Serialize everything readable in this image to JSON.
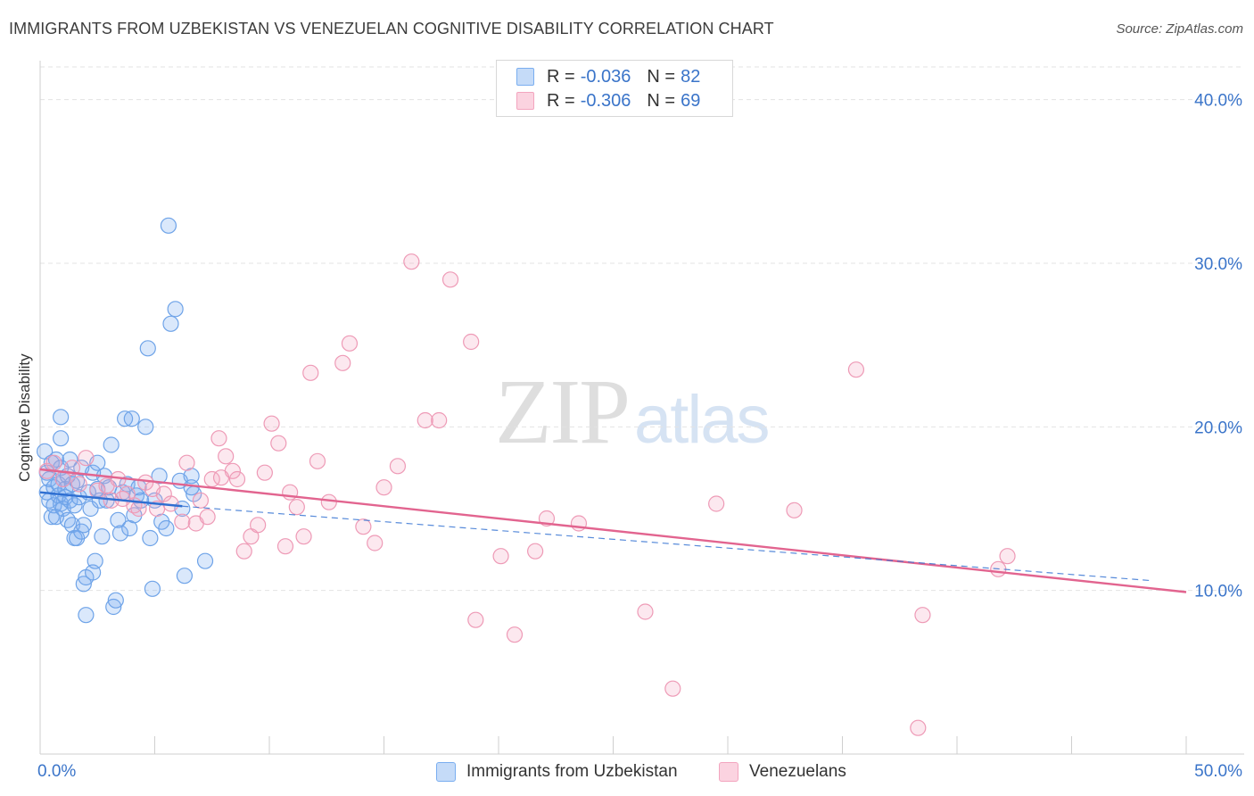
{
  "title": "IMMIGRANTS FROM UZBEKISTAN VS VENEZUELAN COGNITIVE DISABILITY CORRELATION CHART",
  "source": "Source: ZipAtlas.com",
  "watermark": {
    "zip": "ZIP",
    "atlas": "atlas"
  },
  "legend": {
    "r_label": "R =",
    "n_label": "N =",
    "rows": [
      {
        "r": "-0.036",
        "n": "82",
        "color": "#7aaef0"
      },
      {
        "r": "-0.306",
        "n": "69",
        "color": "#f3a5bf"
      }
    ]
  },
  "bottom_legend": [
    "Immigrants from Uzbekistan",
    "Venezuelans"
  ],
  "chart_data": {
    "type": "scatter",
    "title": "IMMIGRANTS FROM UZBEKISTAN VS VENEZUELAN COGNITIVE DISABILITY CORRELATION CHART",
    "xlabel": "",
    "ylabel": "Cognitive Disability",
    "xlim": [
      0,
      50
    ],
    "ylim": [
      0,
      42
    ],
    "x_ticks_labeled": [
      "0.0%",
      "50.0%"
    ],
    "y_ticks": [
      10,
      20,
      30,
      40
    ],
    "y_tick_labels": [
      "10.0%",
      "20.0%",
      "30.0%",
      "40.0%"
    ],
    "grid": true,
    "legend_position": "top-center",
    "colors": {
      "uzbekistan": "#7aaef0",
      "venezuelans": "#f3a5bf",
      "uz_line": "#2f6fd1",
      "ve_line": "#e2648f",
      "axis_text": "#3a74c9"
    },
    "series": [
      {
        "name": "Immigrants from Uzbekistan",
        "color": "#7aaef0",
        "points": [
          [
            0.2,
            18.5
          ],
          [
            0.3,
            17.2
          ],
          [
            0.3,
            16.0
          ],
          [
            0.4,
            15.5
          ],
          [
            0.4,
            16.8
          ],
          [
            0.5,
            14.5
          ],
          [
            0.5,
            17.8
          ],
          [
            0.6,
            16.3
          ],
          [
            0.6,
            15.2
          ],
          [
            0.7,
            18.0
          ],
          [
            0.7,
            14.5
          ],
          [
            0.8,
            16.5
          ],
          [
            0.8,
            15.8
          ],
          [
            0.9,
            17.5
          ],
          [
            0.9,
            15.3
          ],
          [
            0.9,
            19.3
          ],
          [
            0.9,
            20.6
          ],
          [
            1.0,
            16.8
          ],
          [
            1.0,
            15.0
          ],
          [
            1.1,
            16.2
          ],
          [
            1.1,
            15.7
          ],
          [
            1.2,
            17.0
          ],
          [
            1.2,
            14.3
          ],
          [
            1.3,
            18.0
          ],
          [
            1.3,
            15.5
          ],
          [
            1.4,
            16.5
          ],
          [
            1.4,
            14.0
          ],
          [
            1.5,
            15.2
          ],
          [
            1.5,
            13.2
          ],
          [
            1.6,
            16.7
          ],
          [
            1.6,
            13.2
          ],
          [
            1.7,
            15.7
          ],
          [
            1.8,
            17.5
          ],
          [
            1.8,
            13.6
          ],
          [
            1.9,
            14.0
          ],
          [
            1.9,
            10.4
          ],
          [
            2.0,
            10.8
          ],
          [
            2.0,
            8.5
          ],
          [
            2.1,
            16.0
          ],
          [
            2.2,
            15.0
          ],
          [
            2.3,
            17.2
          ],
          [
            2.3,
            11.1
          ],
          [
            2.4,
            11.8
          ],
          [
            2.5,
            17.8
          ],
          [
            2.5,
            16.2
          ],
          [
            2.6,
            15.5
          ],
          [
            2.7,
            13.3
          ],
          [
            2.8,
            17.0
          ],
          [
            2.9,
            15.5
          ],
          [
            3.0,
            16.3
          ],
          [
            3.1,
            18.9
          ],
          [
            3.2,
            9.0
          ],
          [
            3.3,
            9.4
          ],
          [
            3.4,
            14.3
          ],
          [
            3.5,
            13.5
          ],
          [
            3.6,
            16.0
          ],
          [
            3.7,
            20.5
          ],
          [
            3.8,
            16.5
          ],
          [
            3.9,
            13.8
          ],
          [
            4.0,
            20.5
          ],
          [
            4.1,
            14.6
          ],
          [
            4.2,
            15.8
          ],
          [
            4.3,
            16.3
          ],
          [
            4.4,
            15.5
          ],
          [
            4.6,
            20.0
          ],
          [
            4.7,
            24.8
          ],
          [
            4.8,
            13.2
          ],
          [
            4.9,
            10.1
          ],
          [
            5.0,
            15.5
          ],
          [
            5.2,
            17.0
          ],
          [
            5.3,
            14.2
          ],
          [
            5.5,
            13.8
          ],
          [
            5.6,
            32.3
          ],
          [
            5.7,
            26.3
          ],
          [
            5.9,
            27.2
          ],
          [
            6.1,
            16.7
          ],
          [
            6.2,
            15.0
          ],
          [
            6.3,
            10.9
          ],
          [
            6.6,
            17.0
          ],
          [
            6.7,
            15.9
          ],
          [
            7.2,
            11.8
          ],
          [
            6.6,
            16.3
          ]
        ]
      },
      {
        "name": "Venezuelans",
        "color": "#f3a5bf",
        "points": [
          [
            0.3,
            17.3
          ],
          [
            0.6,
            17.8
          ],
          [
            1.0,
            16.8
          ],
          [
            1.4,
            17.5
          ],
          [
            1.7,
            16.5
          ],
          [
            2.0,
            18.1
          ],
          [
            2.5,
            16.1
          ],
          [
            2.9,
            16.4
          ],
          [
            3.1,
            15.5
          ],
          [
            3.4,
            16.8
          ],
          [
            3.8,
            15.9
          ],
          [
            4.1,
            15.2
          ],
          [
            4.3,
            15.0
          ],
          [
            4.6,
            16.6
          ],
          [
            4.9,
            16.2
          ],
          [
            5.1,
            15.0
          ],
          [
            5.4,
            15.9
          ],
          [
            5.7,
            15.3
          ],
          [
            6.2,
            14.2
          ],
          [
            6.4,
            17.8
          ],
          [
            6.8,
            14.1
          ],
          [
            7.0,
            15.5
          ],
          [
            7.3,
            14.5
          ],
          [
            7.5,
            16.8
          ],
          [
            7.8,
            19.3
          ],
          [
            8.1,
            18.2
          ],
          [
            8.4,
            17.3
          ],
          [
            8.6,
            16.8
          ],
          [
            8.9,
            12.4
          ],
          [
            9.2,
            13.3
          ],
          [
            9.5,
            14.0
          ],
          [
            9.8,
            17.2
          ],
          [
            10.1,
            20.2
          ],
          [
            10.4,
            19.0
          ],
          [
            10.7,
            12.7
          ],
          [
            10.9,
            16.0
          ],
          [
            11.2,
            15.1
          ],
          [
            11.5,
            13.3
          ],
          [
            11.8,
            23.3
          ],
          [
            12.1,
            17.9
          ],
          [
            12.6,
            15.4
          ],
          [
            13.2,
            23.9
          ],
          [
            13.5,
            25.1
          ],
          [
            14.1,
            13.9
          ],
          [
            14.6,
            12.9
          ],
          [
            15.0,
            16.3
          ],
          [
            15.6,
            17.6
          ],
          [
            16.2,
            30.1
          ],
          [
            16.8,
            20.4
          ],
          [
            17.4,
            20.4
          ],
          [
            17.9,
            29.0
          ],
          [
            18.8,
            25.2
          ],
          [
            19.0,
            8.2
          ],
          [
            20.1,
            12.1
          ],
          [
            20.7,
            7.3
          ],
          [
            21.6,
            12.4
          ],
          [
            22.1,
            14.4
          ],
          [
            23.5,
            14.1
          ],
          [
            26.4,
            8.7
          ],
          [
            27.6,
            4.0
          ],
          [
            29.5,
            15.3
          ],
          [
            32.9,
            14.9
          ],
          [
            35.6,
            23.5
          ],
          [
            38.3,
            1.6
          ],
          [
            38.5,
            8.5
          ],
          [
            41.8,
            11.3
          ],
          [
            42.2,
            12.1
          ],
          [
            7.9,
            16.9
          ],
          [
            3.6,
            15.6
          ]
        ]
      }
    ],
    "trend_lines": [
      {
        "series": "Immigrants from Uzbekistan",
        "solid": [
          [
            0,
            16.0
          ],
          [
            6.2,
            15.15
          ]
        ],
        "dashed": [
          [
            6.2,
            15.15
          ],
          [
            48.5,
            10.6
          ]
        ]
      },
      {
        "series": "Venezuelans",
        "solid": [
          [
            0,
            17.4
          ],
          [
            50,
            9.9
          ]
        ]
      }
    ]
  }
}
